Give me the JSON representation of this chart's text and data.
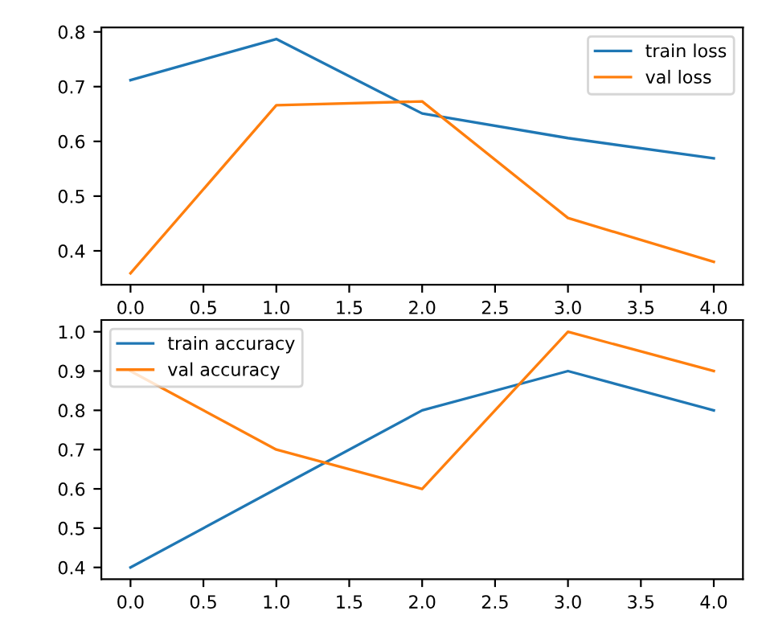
{
  "chart_data": [
    {
      "type": "line",
      "x": [
        0,
        1,
        2,
        3,
        4
      ],
      "series": [
        {
          "name": "train loss",
          "color": "#1f77b4",
          "values": [
            0.712,
            0.787,
            0.651,
            0.606,
            0.569
          ]
        },
        {
          "name": "val loss",
          "color": "#ff7f0e",
          "values": [
            0.359,
            0.666,
            0.673,
            0.46,
            0.38
          ]
        }
      ],
      "xlim": [
        -0.2,
        4.2
      ],
      "ylim": [
        0.338,
        0.808
      ],
      "xticks": [
        {
          "value": 0,
          "label": "0.0"
        },
        0.5,
        {
          "value": 1,
          "label": "1.0"
        },
        1.5,
        {
          "value": 2,
          "label": "2.0"
        },
        2.5,
        {
          "value": 3,
          "label": "3.0"
        },
        3.5,
        {
          "value": 4,
          "label": "4.0"
        }
      ],
      "yticks": [
        0.4,
        0.5,
        0.6,
        0.7,
        0.8
      ],
      "legend": "top right",
      "grid": false
    },
    {
      "type": "line",
      "x": [
        0,
        1,
        2,
        3,
        4
      ],
      "series": [
        {
          "name": "train accuracy",
          "color": "#1f77b4",
          "values": [
            0.4,
            0.6,
            0.8,
            0.9,
            0.8
          ]
        },
        {
          "name": "val accuracy",
          "color": "#ff7f0e",
          "values": [
            0.9,
            0.7,
            0.6,
            1.0,
            0.9
          ]
        }
      ],
      "xlim": [
        -0.2,
        4.2
      ],
      "ylim": [
        0.37,
        1.03
      ],
      "xticks": [
        {
          "value": 0,
          "label": "0.0"
        },
        0.5,
        {
          "value": 1,
          "label": "1.0"
        },
        1.5,
        {
          "value": 2,
          "label": "2.0"
        },
        2.5,
        {
          "value": 3,
          "label": "3.0"
        },
        3.5,
        {
          "value": 4,
          "label": "4.0"
        }
      ],
      "yticks": [
        0.4,
        0.5,
        0.6,
        0.7,
        0.8,
        0.9,
        {
          "value": 1.0,
          "label": "1.0"
        }
      ],
      "legend": "top left",
      "grid": false
    }
  ]
}
